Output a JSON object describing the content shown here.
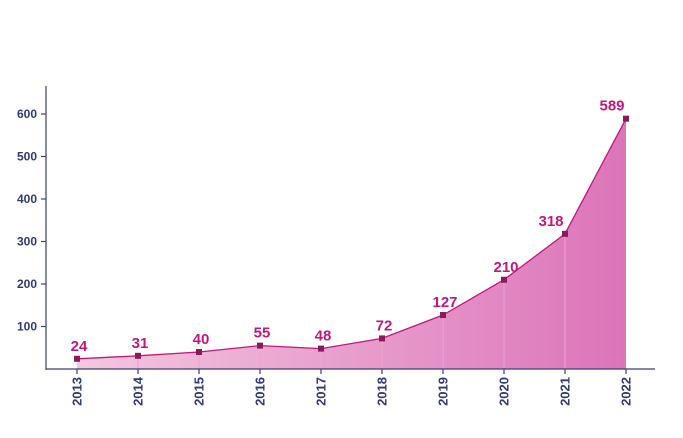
{
  "chart_data": {
    "type": "area",
    "title": "",
    "xlabel": "",
    "ylabel": "",
    "x": [
      "2013",
      "2014",
      "2015",
      "2016",
      "2017",
      "2018",
      "2019",
      "2020",
      "2021",
      "2022"
    ],
    "values": [
      24,
      31,
      40,
      55,
      48,
      72,
      127,
      210,
      318,
      589
    ],
    "data_labels": [
      "24",
      "31",
      "40",
      "55",
      "48",
      "72",
      "127",
      "210",
      "318",
      "589"
    ],
    "ylim": [
      0,
      600
    ],
    "y_ticks": [
      100,
      200,
      300,
      400,
      500,
      600
    ],
    "y_tick_labels": [
      "100",
      "200",
      "300",
      "400",
      "500",
      "600"
    ],
    "grid": false,
    "legend": "none",
    "colors": {
      "line": "#c2187e",
      "marker": "#8a1a5e",
      "label": "#c2187e",
      "axis": "#3a3f7a",
      "fill_light": "#f4c7e0",
      "fill_dark": "#dc74b9",
      "band_divider": "#e8a6cf"
    }
  }
}
